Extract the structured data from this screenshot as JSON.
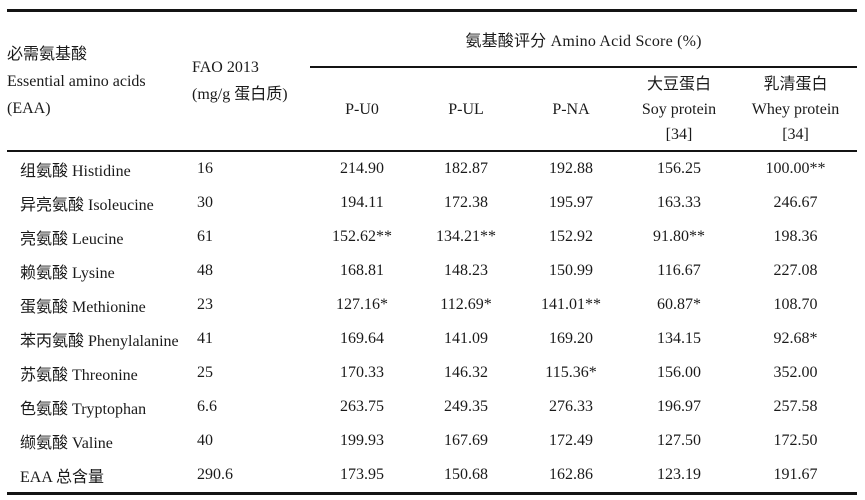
{
  "table": {
    "header": {
      "eaa_lines": [
        "必需氨基酸",
        "Essential amino acids",
        "(EAA)"
      ],
      "fao_lines": [
        "FAO 2013",
        "(mg/g 蛋白质)"
      ],
      "score_group_title": "氨基酸评分  Amino Acid Score (%)",
      "columns": {
        "p_u0": "P-U0",
        "p_ul": "P-UL",
        "p_na": "P-NA",
        "soy_lines": [
          "大豆蛋白",
          "Soy protein",
          "[34]"
        ],
        "whey_lines": [
          "乳清蛋白",
          "Whey protein",
          "[34]"
        ]
      }
    },
    "rows": [
      {
        "name": "组氨酸 Histidine",
        "fao": "16",
        "values": [
          "214.90",
          "182.87",
          "192.88",
          "156.25",
          "100.00**"
        ]
      },
      {
        "name": "异亮氨酸 Isoleucine",
        "fao": "30",
        "values": [
          "194.11",
          "172.38",
          "195.97",
          "163.33",
          "246.67"
        ]
      },
      {
        "name": "亮氨酸 Leucine",
        "fao": "61",
        "values": [
          "152.62**",
          "134.21**",
          "152.92",
          "91.80**",
          "198.36"
        ]
      },
      {
        "name": "赖氨酸 Lysine",
        "fao": "48",
        "values": [
          "168.81",
          "148.23",
          "150.99",
          "116.67",
          "227.08"
        ]
      },
      {
        "name": "蛋氨酸 Methionine",
        "fao": "23",
        "values": [
          "127.16*",
          "112.69*",
          "141.01**",
          "60.87*",
          "108.70"
        ]
      },
      {
        "name": "苯丙氨酸 Phenylalanine",
        "fao": "41",
        "values": [
          "169.64",
          "141.09",
          "169.20",
          "134.15",
          "92.68*"
        ]
      },
      {
        "name": "苏氨酸 Threonine",
        "fao": "25",
        "values": [
          "170.33",
          "146.32",
          "115.36*",
          "156.00",
          "352.00"
        ]
      },
      {
        "name": "色氨酸 Tryptophan",
        "fao": "6.6",
        "values": [
          "263.75",
          "249.35",
          "276.33",
          "196.97",
          "257.58"
        ]
      },
      {
        "name": "缬氨酸 Valine",
        "fao": "40",
        "values": [
          "199.93",
          "167.69",
          "172.49",
          "127.50",
          "172.50"
        ]
      },
      {
        "name": "EAA 总含量",
        "fao": "290.6",
        "values": [
          "173.95",
          "150.68",
          "162.86",
          "123.19",
          "191.67"
        ]
      }
    ]
  },
  "colors": {
    "text": "#1a1a1a",
    "rule": "#141414",
    "background": "#ffffff"
  }
}
